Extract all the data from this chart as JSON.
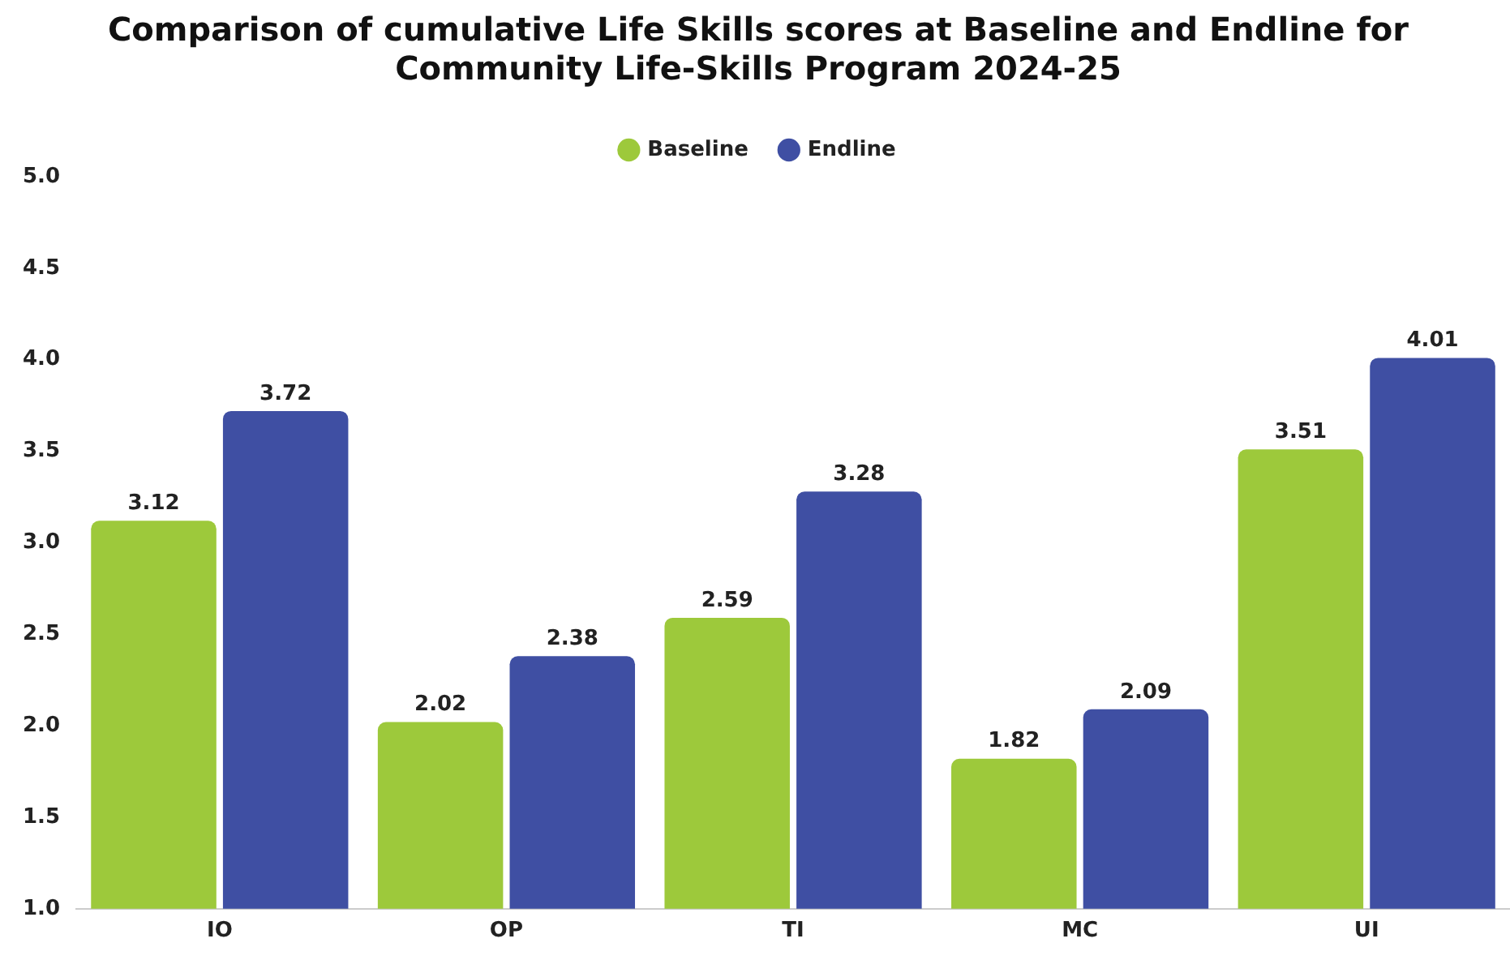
{
  "chart_data": {
    "type": "bar",
    "title": [
      "Comparison of cumulative Life Skills scores at Baseline and Endline for",
      "Community Life-Skills Program 2024-25"
    ],
    "categories": [
      "IO",
      "OP",
      "TI",
      "MC",
      "UI"
    ],
    "series": [
      {
        "name": "Baseline",
        "color": "#9dc93b",
        "values": [
          3.12,
          2.02,
          2.59,
          1.82,
          3.51
        ]
      },
      {
        "name": "Endline",
        "color": "#3f4fa3",
        "values": [
          3.72,
          2.38,
          3.28,
          2.09,
          4.01
        ]
      }
    ],
    "ylim": [
      1.0,
      5.0
    ],
    "yticks": [
      {
        "value": 1,
        "label": "1.0"
      },
      {
        "value": 1.5,
        "label": "1.5"
      },
      {
        "value": 2,
        "label": "2.0"
      },
      {
        "value": 2.5,
        "label": "2.5"
      },
      {
        "value": 3,
        "label": "3.0"
      },
      {
        "value": 3.5,
        "label": "3.5"
      },
      {
        "value": 4,
        "label": "4.0"
      },
      {
        "value": 4.5,
        "label": "4.5"
      },
      {
        "value": 5,
        "label": "5.0"
      }
    ],
    "grid": false,
    "legend": "top",
    "data_labels": true
  }
}
